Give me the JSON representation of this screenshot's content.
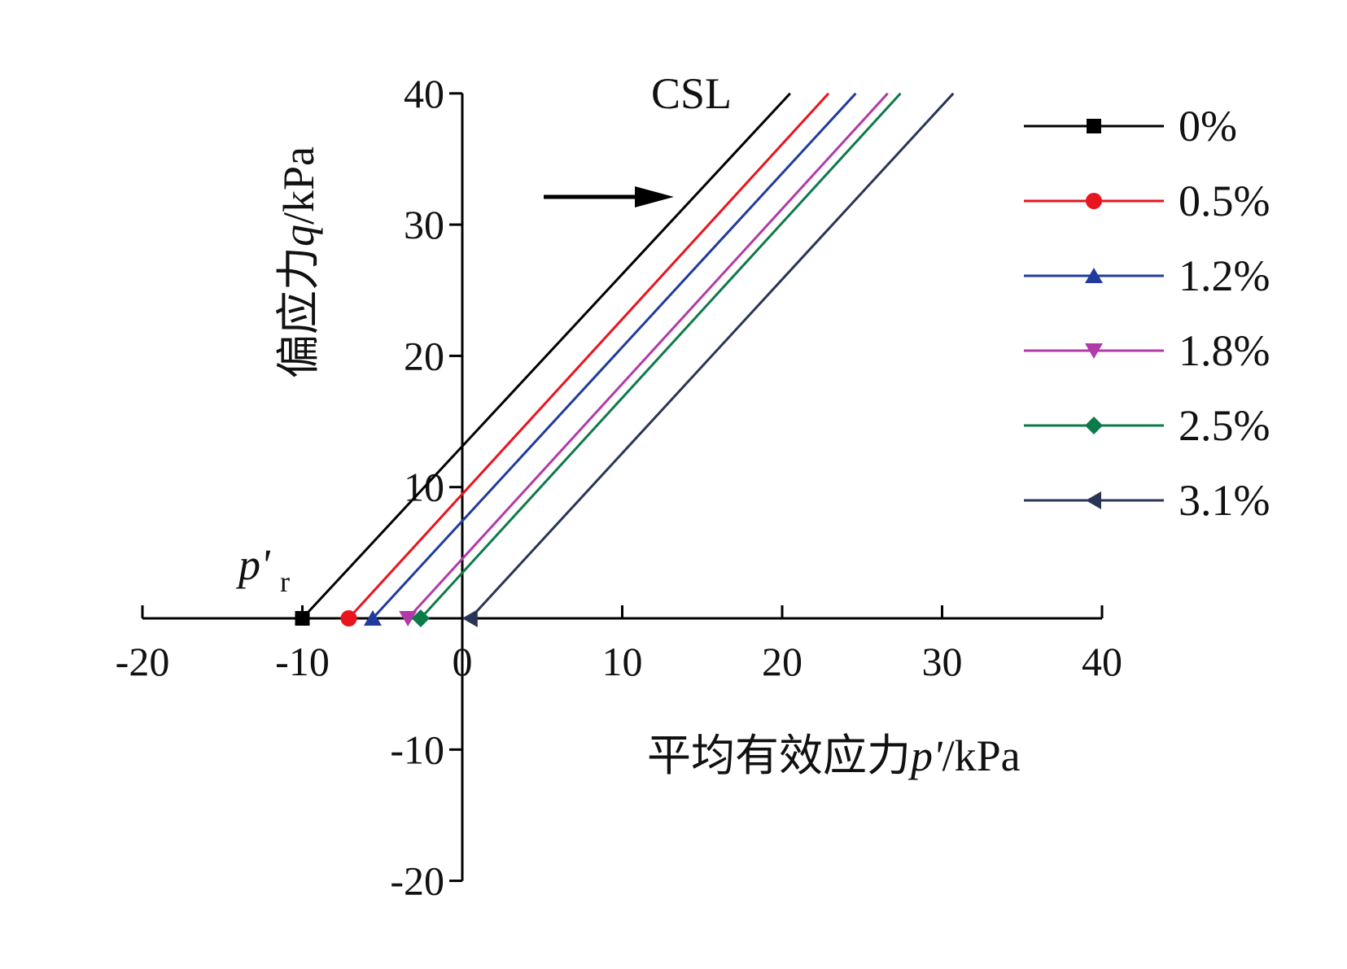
{
  "chart_data": {
    "type": "line",
    "xlabel_prefix": "平均有效应力",
    "xlabel_var": "p'",
    "xlabel_unit": "/kPa",
    "ylabel_prefix": "偏应力",
    "ylabel_var": "q",
    "ylabel_unit": "/kPa",
    "xlim": [
      -20,
      40
    ],
    "ylim": [
      -20,
      40
    ],
    "x_ticks": [
      -20,
      -10,
      0,
      10,
      20,
      30,
      40
    ],
    "y_ticks": [
      -20,
      -10,
      10,
      20,
      30,
      40
    ],
    "x_tick_labels": [
      "-20",
      "-10",
      "0",
      "10",
      "20",
      "30",
      "40"
    ],
    "y_tick_labels": [
      "-20",
      "-10",
      "10",
      "20",
      "30",
      "40"
    ],
    "annotation_csl": "CSL",
    "annotation_pr": "p'",
    "annotation_pr_sub": "r",
    "series": [
      {
        "name": "0%",
        "color": "#000000",
        "marker": "square",
        "x": [
          -10.0,
          20.5
        ],
        "y": [
          0,
          40
        ]
      },
      {
        "name": "0.5%",
        "color": "#e8141e",
        "marker": "circle",
        "x": [
          -7.1,
          22.9
        ],
        "y": [
          0,
          40
        ]
      },
      {
        "name": "1.2%",
        "color": "#1f3c9c",
        "marker": "triangle-up",
        "x": [
          -5.6,
          24.6
        ],
        "y": [
          0,
          40
        ]
      },
      {
        "name": "1.8%",
        "color": "#b23aa6",
        "marker": "triangle-down",
        "x": [
          -3.4,
          26.6
        ],
        "y": [
          0,
          40
        ]
      },
      {
        "name": "2.5%",
        "color": "#0d7a4a",
        "marker": "diamond",
        "x": [
          -2.6,
          27.4
        ],
        "y": [
          0,
          40
        ]
      },
      {
        "name": "3.1%",
        "color": "#2a3556",
        "marker": "triangle-left",
        "x": [
          0.5,
          30.7
        ],
        "y": [
          0,
          40
        ]
      }
    ]
  }
}
